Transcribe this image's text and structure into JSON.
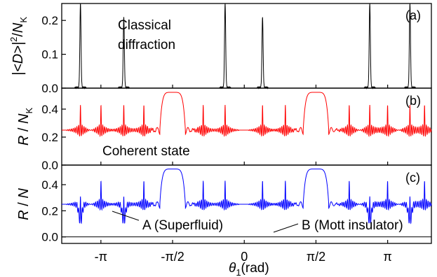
{
  "chart_data": [
    {
      "panel": "(a)",
      "type": "line",
      "ylabel": "|<D>|²/N_K",
      "ylim": [
        0,
        0.25
      ],
      "yticks": [
        "0.0",
        "0.1",
        "0.2"
      ],
      "xlim": [
        -4.0,
        4.1
      ],
      "annotation": [
        "Classical",
        "diffraction"
      ],
      "series": [
        {
          "color": "#000000",
          "peaks": [
            {
              "x": -3.59,
              "y": 0.25
            },
            {
              "x": -2.64,
              "y": 0.21
            },
            {
              "x": -0.42,
              "y": 0.25
            },
            {
              "x": 0.4,
              "y": 0.21
            },
            {
              "x": 2.75,
              "y": 0.25
            },
            {
              "x": 3.63,
              "y": 0.25
            }
          ],
          "baseline": 0.0
        }
      ]
    },
    {
      "panel": "(b)",
      "type": "line",
      "ylabel": "R / N_K",
      "ylim": [
        0,
        0.55
      ],
      "yticks": [
        "0.0",
        "0.2",
        "0.4"
      ],
      "xlim": [
        -4.0,
        4.1
      ],
      "annotation": "Coherent state",
      "series": [
        {
          "color": "#ff0000",
          "baseline": 0.25,
          "plateaus": [
            {
              "center": -1.5708,
              "halfwidth": 0.28,
              "height": 0.52
            },
            {
              "center": 1.5708,
              "halfwidth": 0.28,
              "height": 0.52
            }
          ],
          "spikes": [
            -3.59,
            -3.14,
            -2.64,
            -2.2,
            -0.9,
            -0.42,
            0.4,
            0.9,
            2.3,
            2.75,
            3.14,
            3.63,
            3.95
          ],
          "spike_height": 0.38
        }
      ]
    },
    {
      "panel": "(c)",
      "type": "line",
      "ylabel": "R / N",
      "ylim": [
        -0.05,
        0.55
      ],
      "yticks": [
        "0.0",
        "0.2",
        "0.4"
      ],
      "xlim": [
        -4.0,
        4.1
      ],
      "xticks": [
        "-π",
        "-π/2",
        "0",
        "π/2",
        "π"
      ],
      "xtick_values": [
        -3.1416,
        -1.5708,
        0,
        1.5708,
        3.1416
      ],
      "xlabel": "θ₁(rad)",
      "annotations": [
        "A (Superfluid)",
        "B (Mott insulator)"
      ],
      "series": [
        {
          "name": "A (Superfluid)",
          "color": "#0000ff",
          "baseline": 0.25,
          "plateaus": [
            {
              "center": -1.5708,
              "halfwidth": 0.28,
              "height": 0.52
            },
            {
              "center": 1.5708,
              "halfwidth": 0.28,
              "height": 0.52
            }
          ],
          "spikes": [
            -3.59,
            -3.14,
            -2.64,
            -2.2,
            -0.9,
            -0.42,
            0.4,
            0.9,
            2.3,
            2.75,
            3.14,
            3.63,
            3.95
          ],
          "spike_height": 0.38,
          "dips": [
            -3.59,
            -2.64,
            2.75,
            3.63
          ],
          "dip_depth": 0.12
        },
        {
          "name": "B (Mott insulator)",
          "color": "#000000",
          "constant": 0.0
        }
      ]
    }
  ]
}
